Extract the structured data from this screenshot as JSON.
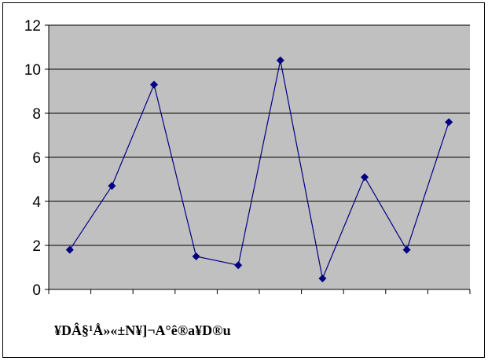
{
  "chart_data": {
    "type": "line",
    "title": "",
    "xlabel": "",
    "ylabel": "",
    "caption": "¥DÂ§¹Å»«±N¥]¬A°ê®a¥D®u",
    "x": [
      1,
      2,
      3,
      4,
      5,
      6,
      7,
      8,
      9,
      10
    ],
    "series": [
      {
        "values": [
          1.8,
          4.7,
          9.3,
          1.5,
          1.1,
          10.4,
          0.5,
          5.1,
          1.8,
          7.6
        ]
      }
    ],
    "ylim": [
      0,
      12
    ],
    "yticks": [
      0,
      2,
      4,
      6,
      8,
      10,
      12
    ],
    "grid": true,
    "legend": "none",
    "colors": {
      "plot_background": "#c0c0c0",
      "line": "#000080",
      "marker": "#000080",
      "grid": "#000000"
    }
  }
}
